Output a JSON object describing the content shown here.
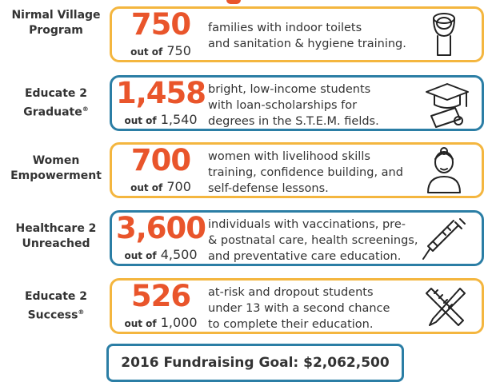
{
  "programs": [
    {
      "name": "Nirmal Village Program",
      "mark": null,
      "achieved": "750",
      "out_of": "out of",
      "total": "750",
      "description": [
        "families with indoor toilets",
        "and sanitation & hygiene training."
      ]
    },
    {
      "name": "Educate 2 Graduate",
      "mark": "®",
      "achieved": "1,458",
      "out_of": "out of",
      "total": "1,540",
      "description": [
        "bright, low-income students",
        "with loan-scholarships for",
        "degrees in the S.T.E.M. fields."
      ]
    },
    {
      "name": "Women Empowerment",
      "mark": null,
      "achieved": "700",
      "out_of": "out of",
      "total": "700",
      "description": [
        "women with livelihood skills",
        "training, confidence building, and",
        "self-defense lessons."
      ]
    },
    {
      "name": "Healthcare 2 Unreached",
      "mark": null,
      "achieved": "3,600",
      "out_of": "out of",
      "total": "4,500",
      "description": [
        "individuals with vaccinations, pre-",
        "& postnatal care, health screenings,",
        "and preventative care education."
      ]
    },
    {
      "name": "Educate 2 Success",
      "mark": "®",
      "achieved": "526",
      "out_of": "out of",
      "total": "1,000",
      "description": [
        "at-risk and dropout students",
        "under 13 with a second chance",
        "to complete their education."
      ]
    }
  ],
  "goal": "2016 Fundraising Goal: $2,062,500"
}
